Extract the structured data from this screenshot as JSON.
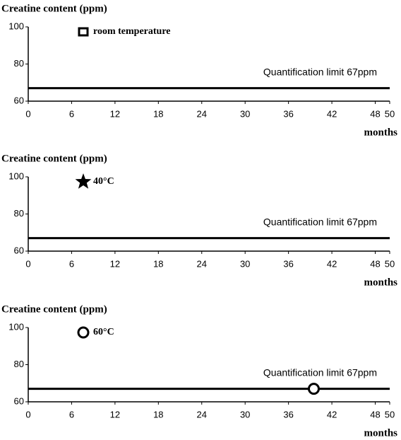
{
  "chart_data": [
    {
      "type": "scatter",
      "y_label": "Creatine content (ppm)",
      "x_label": "months",
      "xlim": [
        0,
        50
      ],
      "xticks": [
        0,
        6,
        12,
        18,
        24,
        30,
        36,
        42,
        48,
        50
      ],
      "ylim": [
        60,
        100
      ],
      "yticks": [
        60,
        80,
        100
      ],
      "reference_line": {
        "value": 67,
        "label": "Quantification limit 67ppm"
      },
      "series": [
        {
          "name": "room temperature",
          "color": "#000000",
          "marker": "square",
          "x": [],
          "values": []
        }
      ]
    },
    {
      "type": "scatter",
      "y_label": "Creatine content (ppm)",
      "x_label": "months",
      "xlim": [
        0,
        50
      ],
      "xticks": [
        0,
        6,
        12,
        18,
        24,
        30,
        36,
        42,
        48,
        50
      ],
      "ylim": [
        60,
        100
      ],
      "yticks": [
        60,
        80,
        100
      ],
      "reference_line": {
        "value": 67,
        "label": "Quantification limit 67ppm"
      },
      "series": [
        {
          "name": "40°C",
          "color": "#000000",
          "marker": "star",
          "x": [],
          "values": []
        }
      ]
    },
    {
      "type": "scatter",
      "y_label": "Creatine content (ppm)",
      "x_label": "months",
      "xlim": [
        0,
        50
      ],
      "xticks": [
        0,
        6,
        12,
        18,
        24,
        30,
        36,
        42,
        48,
        50
      ],
      "ylim": [
        60,
        100
      ],
      "yticks": [
        60,
        80,
        100
      ],
      "reference_line": {
        "value": 67,
        "label": "Quantification limit 67ppm"
      },
      "series": [
        {
          "name": "60°C",
          "color": "#000000",
          "marker": "circle",
          "x": [
            39.5
          ],
          "values": [
            67
          ]
        }
      ]
    }
  ]
}
